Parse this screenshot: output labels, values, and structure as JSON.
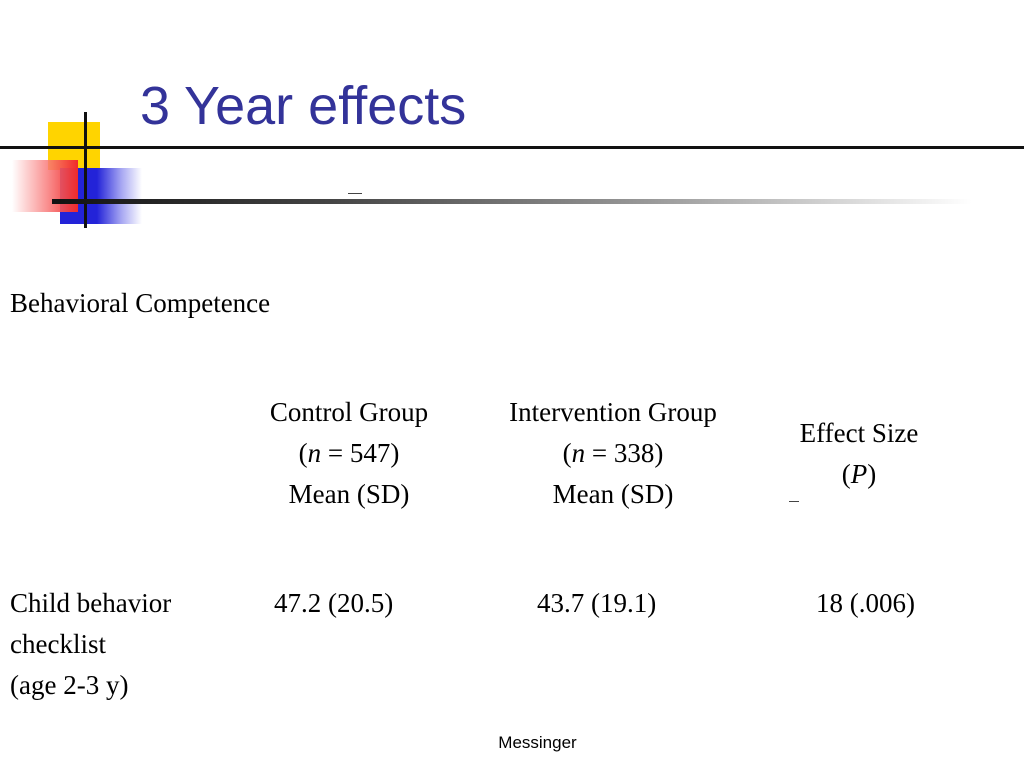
{
  "slide": {
    "title": "3 Year effects",
    "section_heading": "Behavioral Competence",
    "columns": [
      {
        "lines": [
          "Control Group",
          "(",
          "n",
          " = 547)",
          "Mean (SD)"
        ]
      },
      {
        "lines": [
          "Intervention Group",
          "(",
          "n",
          " = 338)",
          "Mean (SD)"
        ]
      },
      {
        "lines": [
          "Effect Size",
          "(",
          "P",
          ")"
        ]
      }
    ],
    "rows": [
      {
        "label_lines": [
          "Child behavior",
          "checklist",
          "(age 2-3 y)"
        ],
        "control": "47.2 (20.5)",
        "intervention": "43.7 (19.1)",
        "effect": "18 (.006)"
      }
    ],
    "footer": "Messinger"
  },
  "colors": {
    "title": "#333399",
    "deco_yellow": "#ffd400",
    "deco_blue": "#2323d8",
    "deco_red": "#f02a2a"
  }
}
